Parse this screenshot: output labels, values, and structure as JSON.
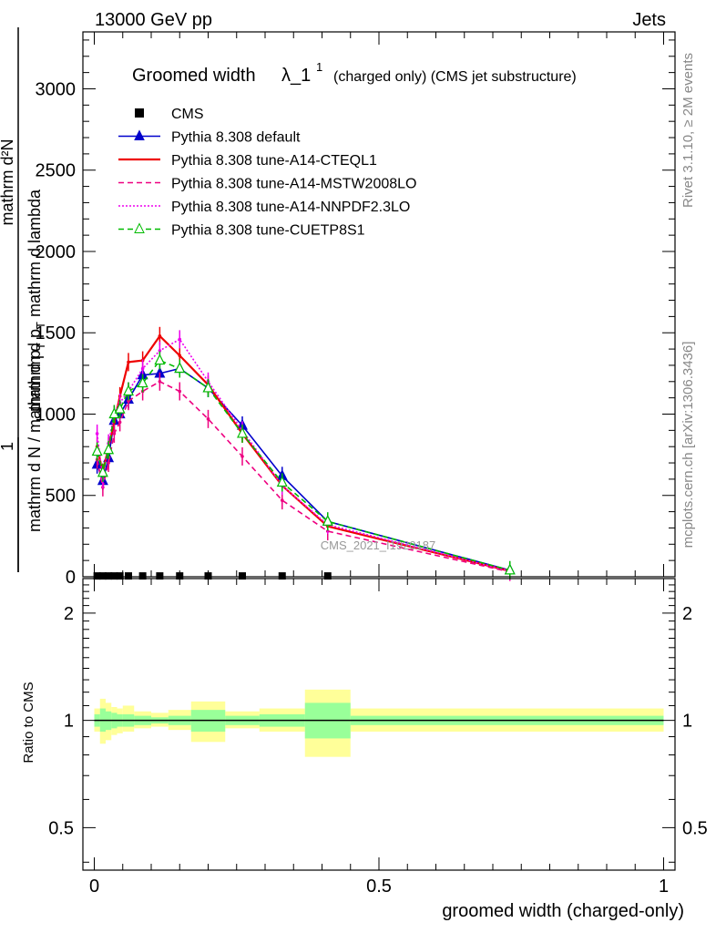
{
  "header": {
    "left": "13000 GeV pp",
    "right": "Jets"
  },
  "side_texts": {
    "rivet": "Rivet 3.1.10, ≥ 2M events",
    "mcplots": "mcplots.cern.ch [arXiv:1306.3436]"
  },
  "watermark": "CMS_2021_I1920187",
  "chart_data": [
    {
      "type": "line",
      "title_main": "Groomed width",
      "title_lambda": "λ_1",
      "title_sup": "1",
      "title_rest": "(charged only) (CMS jet substructure)",
      "ylabel_num": "mathrm d²N",
      "ylabel_den_a": "mathrm d p",
      "ylabel_den_sub": "T",
      "ylabel_den_b": " mathrm d lambda",
      "ylabel_prefix_num": "1",
      "ylabel_prefix_den": "mathrm d N / mathrm d p",
      "ylabel_prefix_sub": "T",
      "xlabel": "groomed width (charged-only)",
      "xlim": [
        -0.02,
        1.02
      ],
      "ylim": [
        0,
        3350
      ],
      "yticks": [
        0,
        500,
        1000,
        1500,
        2000,
        2500,
        3000
      ],
      "ytick_labels": [
        "0",
        "500",
        "1000",
        "1500",
        "2000",
        "2500",
        "3000"
      ],
      "legend_placement": "top-left",
      "series": [
        {
          "name": "CMS",
          "color": "#000000",
          "style": "data",
          "x": [
            0.005,
            0.015,
            0.025,
            0.035,
            0.045,
            0.06,
            0.085,
            0.115,
            0.15,
            0.2,
            0.26,
            0.33,
            0.41
          ],
          "y": [
            5,
            5,
            5,
            5,
            5,
            5,
            5,
            5,
            5,
            5,
            5,
            5,
            5
          ]
        },
        {
          "name": "Pythia 8.308 default",
          "color": "#0000cc",
          "style": "solid-triangle",
          "x": [
            0.005,
            0.015,
            0.025,
            0.035,
            0.045,
            0.06,
            0.085,
            0.115,
            0.15,
            0.2,
            0.26,
            0.33,
            0.41,
            0.73
          ],
          "y": [
            690,
            590,
            730,
            960,
            1000,
            1090,
            1240,
            1250,
            1280,
            1160,
            930,
            620,
            340,
            40
          ]
        },
        {
          "name": "Pythia 8.308 tune-A14-CTEQL1",
          "color": "#ee0000",
          "style": "solid",
          "x": [
            0.005,
            0.015,
            0.025,
            0.035,
            0.045,
            0.06,
            0.085,
            0.115,
            0.15,
            0.2,
            0.26,
            0.33,
            0.41,
            0.73
          ],
          "y": [
            800,
            640,
            800,
            950,
            1110,
            1320,
            1330,
            1480,
            1360,
            1180,
            880,
            560,
            310,
            35
          ]
        },
        {
          "name": "Pythia 8.308 tune-A14-MSTW2008LO",
          "color": "#ee0080",
          "style": "dashed",
          "x": [
            0.005,
            0.015,
            0.025,
            0.035,
            0.045,
            0.06,
            0.085,
            0.115,
            0.15,
            0.2,
            0.26,
            0.33,
            0.41,
            0.73
          ],
          "y": [
            720,
            550,
            700,
            880,
            950,
            1080,
            1140,
            1200,
            1140,
            970,
            740,
            470,
            280,
            30
          ]
        },
        {
          "name": "Pythia 8.308 tune-A14-NNPDF2.3LO",
          "color": "#ee00ee",
          "style": "dotted",
          "x": [
            0.005,
            0.015,
            0.025,
            0.035,
            0.045,
            0.06,
            0.085,
            0.115,
            0.15,
            0.2,
            0.26,
            0.33,
            0.41,
            0.73
          ],
          "y": [
            880,
            600,
            820,
            1000,
            1070,
            1140,
            1280,
            1390,
            1460,
            1200,
            900,
            560,
            320,
            35
          ]
        },
        {
          "name": "Pythia 8.308 tune-CUETP8S1",
          "color": "#00bb00",
          "style": "dashed-triangle",
          "x": [
            0.005,
            0.015,
            0.025,
            0.035,
            0.045,
            0.06,
            0.085,
            0.115,
            0.15,
            0.2,
            0.26,
            0.33,
            0.41,
            0.73
          ],
          "y": [
            770,
            640,
            780,
            1000,
            1030,
            1140,
            1190,
            1330,
            1280,
            1160,
            880,
            580,
            340,
            40
          ]
        }
      ]
    },
    {
      "type": "area",
      "ylabel": "Ratio to CMS",
      "xlabel": "groomed width (charged-only)",
      "xlim": [
        -0.02,
        1.02
      ],
      "ylim": [
        0.38,
        2.5
      ],
      "log_y": true,
      "yticks": [
        0.5,
        1,
        2
      ],
      "ytick_labels": [
        "0.5",
        "1",
        "2"
      ],
      "xticks": [
        0,
        0.5,
        1
      ],
      "xtick_labels": [
        "0",
        "0.5",
        "1"
      ],
      "bands": [
        {
          "x0": 0.0,
          "x1": 0.01,
          "yel": [
            0.93,
            1.08
          ],
          "grn": [
            0.96,
            1.04
          ]
        },
        {
          "x0": 0.01,
          "x1": 0.02,
          "yel": [
            0.86,
            1.15
          ],
          "grn": [
            0.93,
            1.08
          ]
        },
        {
          "x0": 0.02,
          "x1": 0.03,
          "yel": [
            0.88,
            1.12
          ],
          "grn": [
            0.94,
            1.06
          ]
        },
        {
          "x0": 0.03,
          "x1": 0.04,
          "yel": [
            0.91,
            1.09
          ],
          "grn": [
            0.95,
            1.05
          ]
        },
        {
          "x0": 0.04,
          "x1": 0.05,
          "yel": [
            0.92,
            1.08
          ],
          "grn": [
            0.96,
            1.04
          ]
        },
        {
          "x0": 0.05,
          "x1": 0.07,
          "yel": [
            0.93,
            1.1
          ],
          "grn": [
            0.96,
            1.04
          ]
        },
        {
          "x0": 0.07,
          "x1": 0.1,
          "yel": [
            0.95,
            1.06
          ],
          "grn": [
            0.97,
            1.03
          ]
        },
        {
          "x0": 0.1,
          "x1": 0.13,
          "yel": [
            0.96,
            1.05
          ],
          "grn": [
            0.98,
            1.02
          ]
        },
        {
          "x0": 0.13,
          "x1": 0.17,
          "yel": [
            0.94,
            1.07
          ],
          "grn": [
            0.97,
            1.03
          ]
        },
        {
          "x0": 0.17,
          "x1": 0.23,
          "yel": [
            0.87,
            1.13
          ],
          "grn": [
            0.93,
            1.07
          ]
        },
        {
          "x0": 0.23,
          "x1": 0.29,
          "yel": [
            0.95,
            1.06
          ],
          "grn": [
            0.97,
            1.03
          ]
        },
        {
          "x0": 0.29,
          "x1": 0.37,
          "yel": [
            0.93,
            1.08
          ],
          "grn": [
            0.96,
            1.04
          ]
        },
        {
          "x0": 0.37,
          "x1": 0.45,
          "yel": [
            0.79,
            1.22
          ],
          "grn": [
            0.89,
            1.12
          ]
        },
        {
          "x0": 0.45,
          "x1": 1.0,
          "yel": [
            0.93,
            1.08
          ],
          "grn": [
            0.97,
            1.03
          ]
        }
      ],
      "band_colors": {
        "yellow": "#ffff99",
        "green": "#99ff99"
      }
    }
  ]
}
